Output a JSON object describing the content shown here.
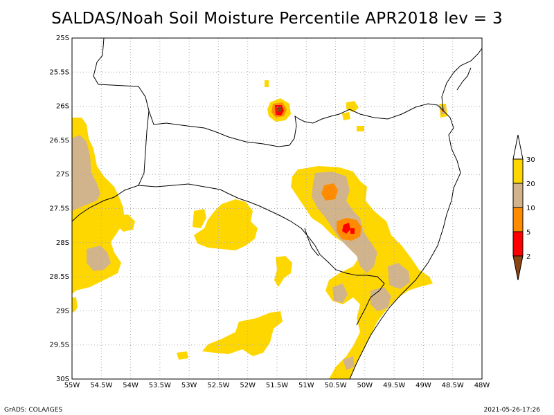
{
  "title": "SALDAS/Noah Soil Moisture Percentile APR2018 lev = 3",
  "footer": {
    "left": "GrADS: COLA/IGES",
    "right": "2021-05-26-17:26"
  },
  "colors": {
    "c30": "#ffd700",
    "c20": "#d2b48c",
    "c10": "#ff8c00",
    "c5": "#ff0000",
    "c2": "#8b4513",
    "border": "#000000",
    "grid": "#aaaaaa"
  },
  "map": {
    "lon_range": [
      -55,
      -48
    ],
    "lat_range": [
      -30,
      -25
    ],
    "x_ticks": [
      "55W",
      "54.5W",
      "54W",
      "53.5W",
      "53W",
      "52.5W",
      "52W",
      "51.5W",
      "51W",
      "50.5W",
      "50W",
      "49.5W",
      "49W",
      "48.5W",
      "48W"
    ],
    "y_ticks": [
      "25S",
      "25.5S",
      "26S",
      "26.5S",
      "27S",
      "27.5S",
      "28S",
      "28.5S",
      "29S",
      "29.5S",
      "30S"
    ]
  },
  "legend": {
    "labels": [
      "30",
      "20",
      "10",
      "5",
      "2"
    ],
    "colors": [
      "#ffd700",
      "#d2b48c",
      "#ff8c00",
      "#ff0000",
      "#8b4513"
    ]
  }
}
